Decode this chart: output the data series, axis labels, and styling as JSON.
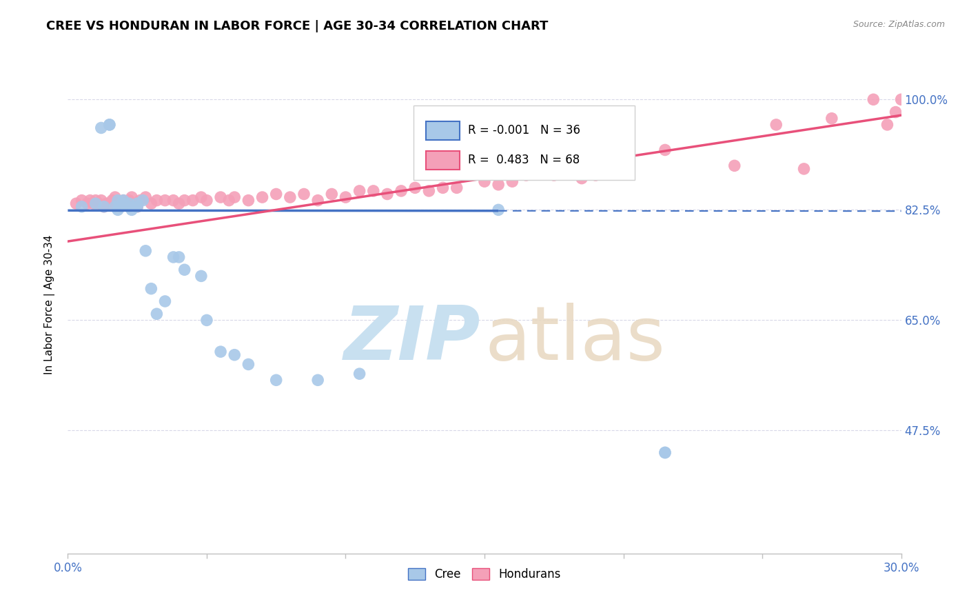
{
  "title": "CREE VS HONDURAN IN LABOR FORCE | AGE 30-34 CORRELATION CHART",
  "source": "Source: ZipAtlas.com",
  "ylabel": "In Labor Force | Age 30-34",
  "xlim": [
    0.0,
    0.3
  ],
  "ylim": [
    0.28,
    1.07
  ],
  "xticks": [
    0.0,
    0.05,
    0.1,
    0.15,
    0.2,
    0.25,
    0.3
  ],
  "yticks": [
    0.475,
    0.65,
    0.825,
    1.0
  ],
  "yticklabels": [
    "47.5%",
    "65.0%",
    "82.5%",
    "100.0%"
  ],
  "legend_r_cree": "-0.001",
  "legend_n_cree": "36",
  "legend_r_honduran": "0.483",
  "legend_n_honduran": "68",
  "cree_color": "#a8c8e8",
  "honduran_color": "#f4a0b8",
  "cree_line_color": "#4472C4",
  "honduran_line_color": "#e8507a",
  "watermark_color_zip": "#c8e0f0",
  "watermark_color_atlas": "#e8d8c0",
  "cree_line_y0": 0.824,
  "cree_line_y1": 0.823,
  "cree_line_solid_x_end": 0.155,
  "honduran_line_y0": 0.775,
  "honduran_line_y1": 0.975,
  "cree_points_x": [
    0.005,
    0.01,
    0.012,
    0.013,
    0.015,
    0.015,
    0.017,
    0.018,
    0.018,
    0.019,
    0.02,
    0.02,
    0.022,
    0.022,
    0.023,
    0.025,
    0.025,
    0.027,
    0.028,
    0.03,
    0.032,
    0.035,
    0.038,
    0.04,
    0.042,
    0.048,
    0.05,
    0.055,
    0.06,
    0.065,
    0.075,
    0.09,
    0.105,
    0.155,
    0.215,
    0.215
  ],
  "cree_points_y": [
    0.83,
    0.835,
    0.955,
    0.83,
    0.96,
    0.96,
    0.83,
    0.825,
    0.84,
    0.83,
    0.84,
    0.835,
    0.835,
    0.83,
    0.825,
    0.835,
    0.83,
    0.84,
    0.76,
    0.7,
    0.66,
    0.68,
    0.75,
    0.75,
    0.73,
    0.72,
    0.65,
    0.6,
    0.595,
    0.58,
    0.555,
    0.555,
    0.565,
    0.825,
    0.44,
    0.44
  ],
  "honduran_points_x": [
    0.003,
    0.005,
    0.007,
    0.008,
    0.009,
    0.01,
    0.011,
    0.012,
    0.013,
    0.014,
    0.015,
    0.016,
    0.017,
    0.018,
    0.019,
    0.02,
    0.021,
    0.022,
    0.023,
    0.024,
    0.025,
    0.026,
    0.028,
    0.03,
    0.032,
    0.035,
    0.038,
    0.04,
    0.042,
    0.045,
    0.048,
    0.05,
    0.055,
    0.058,
    0.06,
    0.065,
    0.07,
    0.075,
    0.08,
    0.085,
    0.09,
    0.095,
    0.1,
    0.105,
    0.11,
    0.115,
    0.12,
    0.125,
    0.13,
    0.135,
    0.14,
    0.15,
    0.155,
    0.16,
    0.165,
    0.175,
    0.185,
    0.19,
    0.2,
    0.215,
    0.24,
    0.255,
    0.265,
    0.275,
    0.29,
    0.295,
    0.298,
    0.3
  ],
  "honduran_points_y": [
    0.835,
    0.84,
    0.835,
    0.84,
    0.835,
    0.84,
    0.835,
    0.84,
    0.83,
    0.835,
    0.835,
    0.84,
    0.845,
    0.835,
    0.83,
    0.84,
    0.835,
    0.84,
    0.845,
    0.835,
    0.83,
    0.84,
    0.845,
    0.835,
    0.84,
    0.84,
    0.84,
    0.835,
    0.84,
    0.84,
    0.845,
    0.84,
    0.845,
    0.84,
    0.845,
    0.84,
    0.845,
    0.85,
    0.845,
    0.85,
    0.84,
    0.85,
    0.845,
    0.855,
    0.855,
    0.85,
    0.855,
    0.86,
    0.855,
    0.86,
    0.86,
    0.87,
    0.865,
    0.87,
    0.88,
    0.88,
    0.875,
    0.88,
    0.89,
    0.92,
    0.895,
    0.96,
    0.89,
    0.97,
    1.0,
    0.96,
    0.98,
    1.0
  ]
}
